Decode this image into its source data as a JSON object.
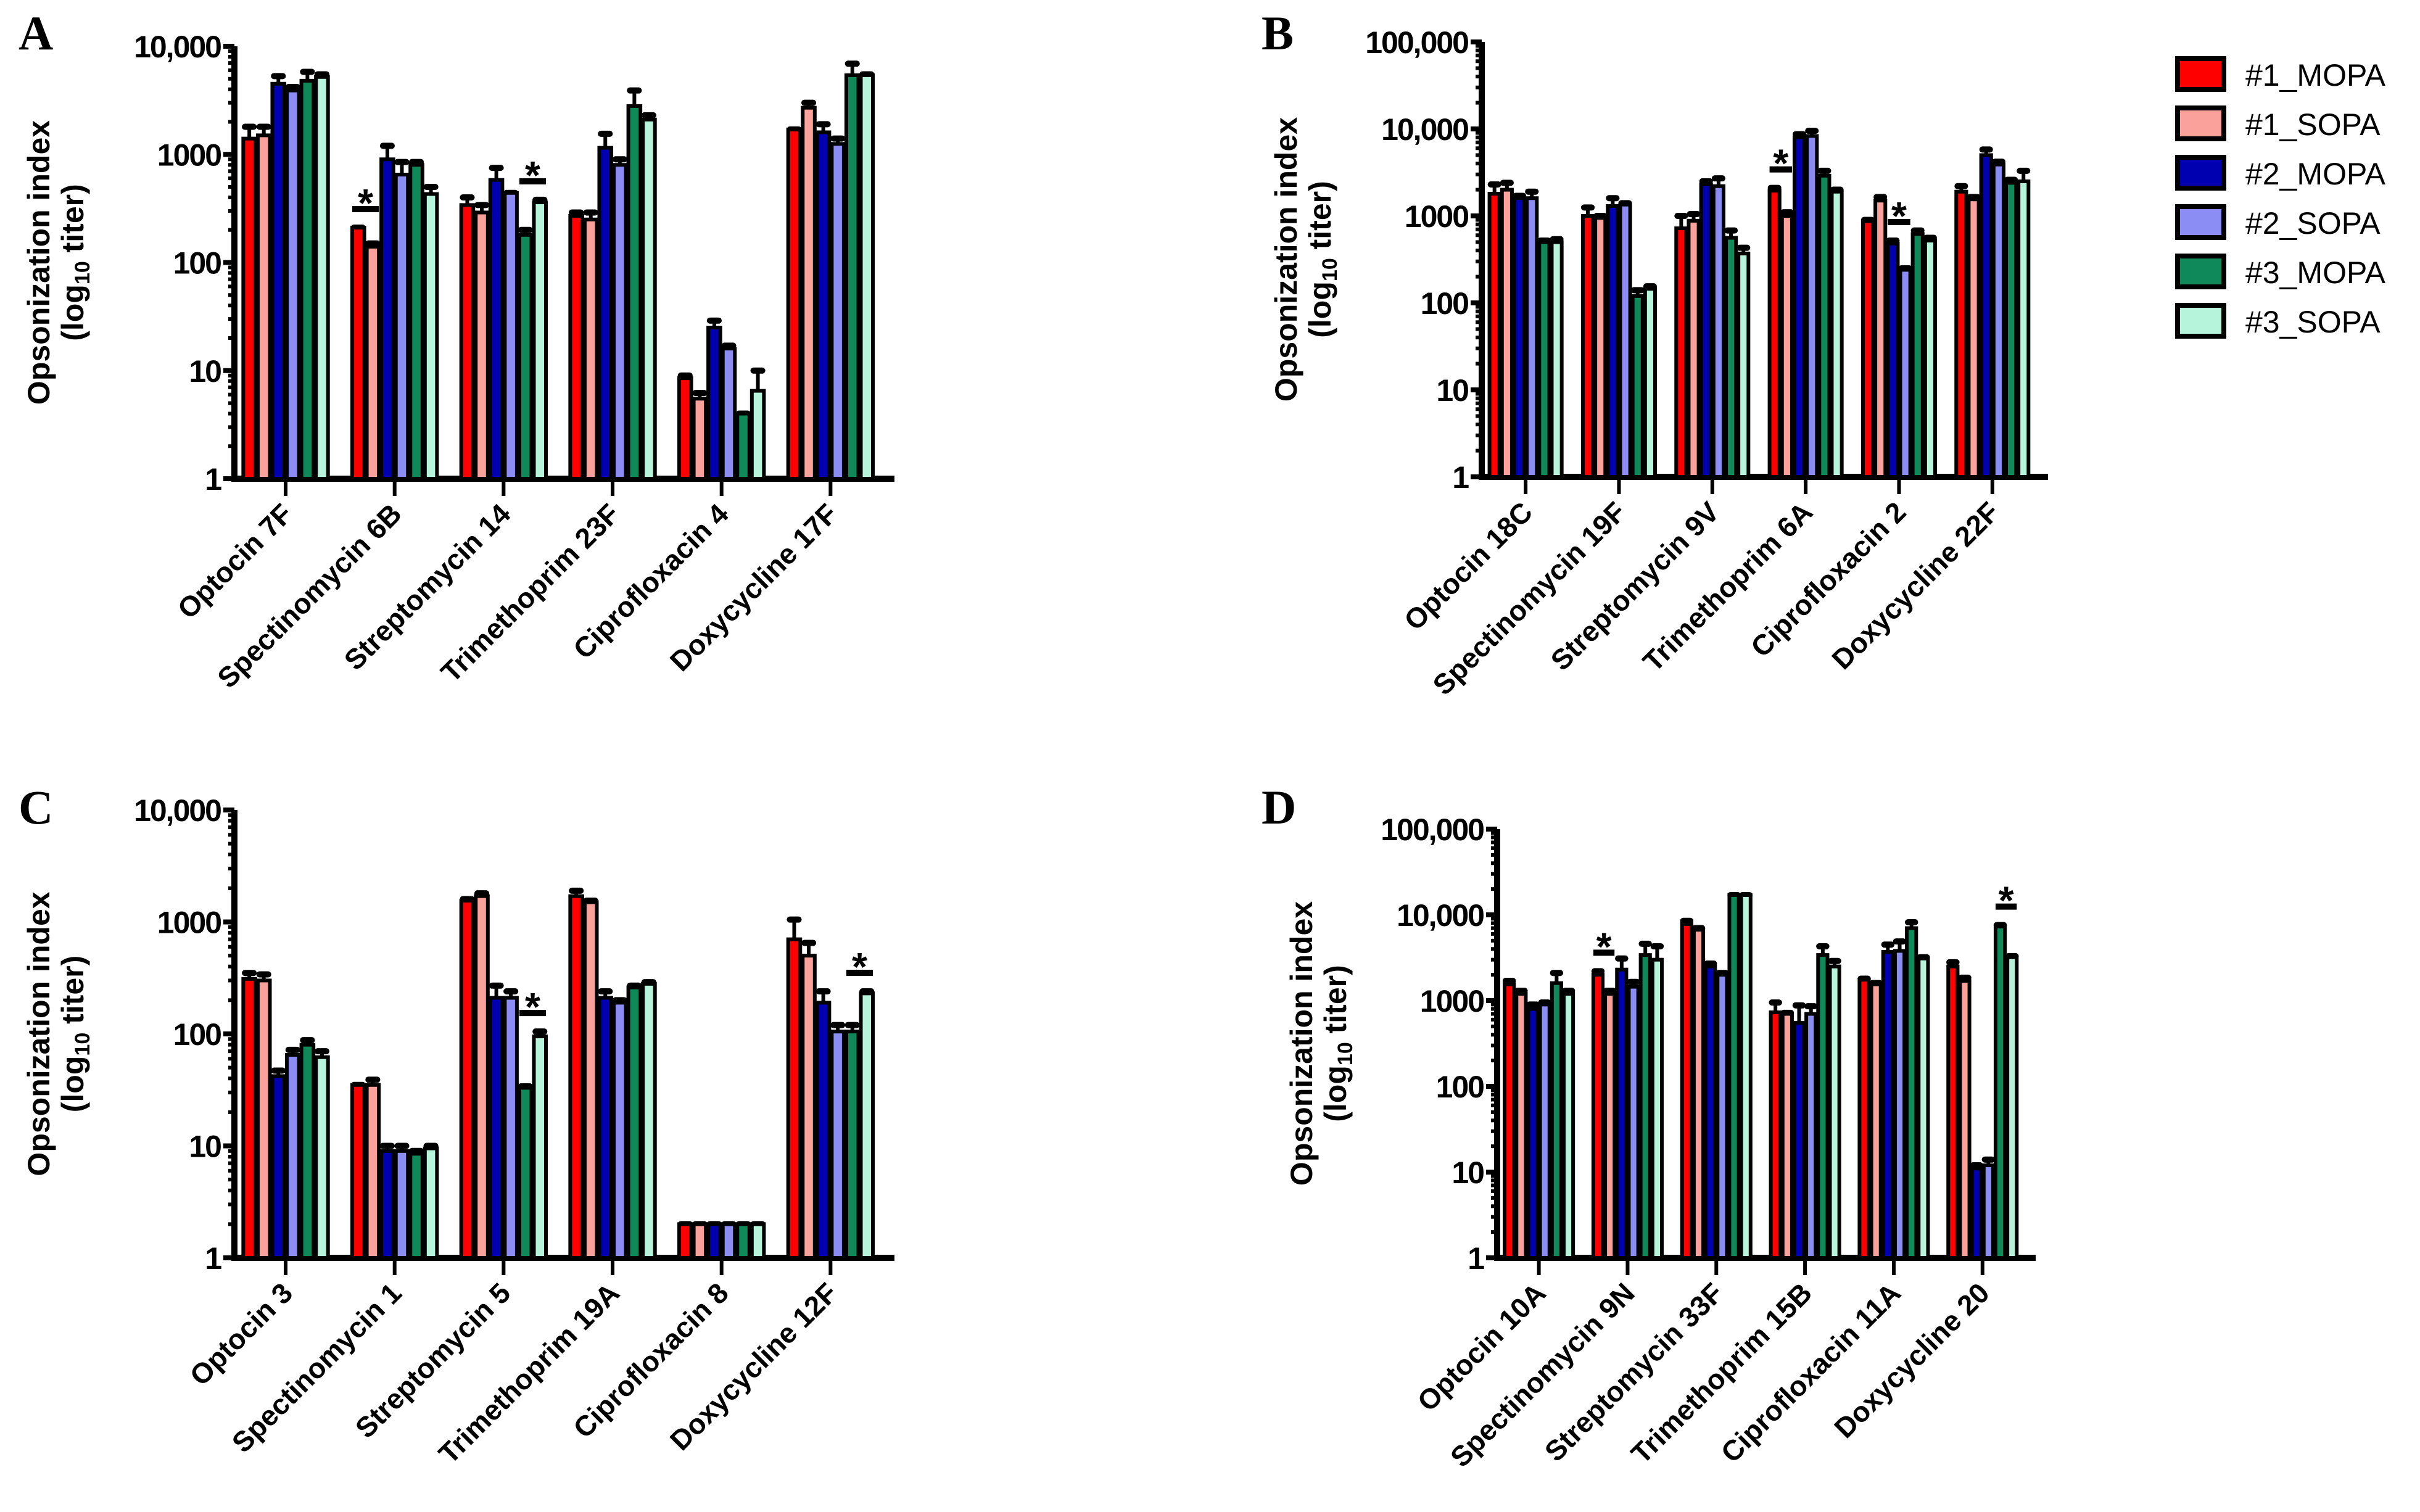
{
  "legend": {
    "placement": "right",
    "items": [
      {
        "name": "#1_MOPA",
        "color": "#ff0000"
      },
      {
        "name": "#1_SOPA",
        "color": "#f9a19a"
      },
      {
        "name": "#2_MOPA",
        "color": "#0000b0"
      },
      {
        "name": "#2_SOPA",
        "color": "#8c8cf5"
      },
      {
        "name": "#3_MOPA",
        "color": "#10895a"
      },
      {
        "name": "#3_SOPA",
        "color": "#b6f5dc"
      }
    ]
  },
  "ylabel": {
    "line1": "Opsonization index",
    "line2_prefix": "(log",
    "line2_sub": "10",
    "line2_suffix": " titer)"
  },
  "chart_data": [
    {
      "panel": "A",
      "type": "bar",
      "yscale": "log",
      "ylim": [
        1,
        10000
      ],
      "yticks": [
        "1",
        "10",
        "100",
        "1000",
        "10,000"
      ],
      "categories": [
        "Optocin 7F",
        "Spectinomycin 6B",
        "Streptomycin 14",
        "Trimethoprim 23F",
        "Ciprofloxacin 4",
        "Doxycycline 17F"
      ],
      "values": [
        [
          1400,
          1500,
          4500,
          3900,
          4800,
          5200
        ],
        [
          210,
          140,
          900,
          650,
          800,
          430
        ],
        [
          340,
          290,
          580,
          440,
          180,
          360
        ],
        [
          270,
          250,
          1150,
          800,
          2800,
          2100
        ],
        [
          8.5,
          5.5,
          25,
          16,
          4,
          6.5
        ],
        [
          1700,
          2700,
          1600,
          1250,
          5400,
          5400
        ]
      ],
      "error_upper": [
        [
          1800,
          1800,
          5300,
          4200,
          5800,
          5500
        ],
        [
          210,
          150,
          1200,
          850,
          850,
          500
        ],
        [
          400,
          340,
          750,
          440,
          200,
          380
        ],
        [
          290,
          290,
          1550,
          900,
          3900,
          2300
        ],
        [
          9,
          6.2,
          29,
          17,
          4,
          10
        ],
        [
          1700,
          3000,
          1900,
          1400,
          6900,
          5500
        ]
      ],
      "significance": [
        {
          "category": 1,
          "bars": [
            0,
            1
          ],
          "label": "*"
        },
        {
          "category": 2,
          "bars": [
            4,
            5
          ],
          "label": "*"
        }
      ]
    },
    {
      "panel": "B",
      "type": "bar",
      "yscale": "log",
      "ylim": [
        1,
        100000
      ],
      "yticks": [
        "1",
        "10",
        "100",
        "1000",
        "10,000",
        "100,000"
      ],
      "categories": [
        "Optocin 18C",
        "Spectinomycin 19F",
        "Streptomycin 9V",
        "Trimethoprim 6A",
        "Ciprofloxacin 2",
        "Doxycycline 22F"
      ],
      "values": [
        [
          1800,
          2000,
          1600,
          1600,
          500,
          500
        ],
        [
          1000,
          950,
          1300,
          1350,
          120,
          145
        ],
        [
          720,
          880,
          2300,
          2200,
          560,
          370
        ],
        [
          1950,
          1000,
          8000,
          8300,
          2900,
          1900
        ],
        [
          870,
          1500,
          480,
          240,
          620,
          520
        ],
        [
          1900,
          1550,
          5000,
          3900,
          2400,
          2500
        ]
      ],
      "error_upper": [
        [
          2300,
          2400,
          1700,
          1900,
          520,
          540
        ],
        [
          1250,
          1000,
          1600,
          1400,
          140,
          155
        ],
        [
          1000,
          1050,
          2500,
          2700,
          680,
          430
        ],
        [
          2100,
          1100,
          8700,
          9500,
          3300,
          2000
        ],
        [
          900,
          1650,
          520,
          250,
          680,
          560
        ],
        [
          2200,
          1650,
          5800,
          4200,
          2600,
          3300
        ]
      ],
      "significance": [
        {
          "category": 3,
          "bars": [
            0,
            1
          ],
          "label": "*"
        },
        {
          "category": 4,
          "bars": [
            2,
            3
          ],
          "label": "*"
        }
      ]
    },
    {
      "panel": "C",
      "type": "bar",
      "yscale": "log",
      "ylim": [
        1,
        10000
      ],
      "yticks": [
        "1",
        "10",
        "100",
        "1000",
        "10,000"
      ],
      "categories": [
        "Optocin 3",
        "Spectinomycin 1",
        "Streptomycin 5",
        "Trimethoprim 19A",
        "Ciprofloxacin 8",
        "Doxycycline 12F"
      ],
      "values": [
        [
          310,
          300,
          42,
          65,
          80,
          62
        ],
        [
          35,
          35,
          9,
          9,
          8.5,
          9.5
        ],
        [
          1550,
          1700,
          210,
          210,
          33,
          95
        ],
        [
          1700,
          1500,
          210,
          190,
          260,
          280
        ],
        [
          2,
          2,
          2,
          2,
          2,
          2
        ],
        [
          700,
          500,
          190,
          105,
          105,
          230
        ]
      ],
      "error_upper": [
        [
          350,
          340,
          47,
          72,
          88,
          70
        ],
        [
          35,
          39,
          10,
          10,
          9,
          10
        ],
        [
          1600,
          1800,
          270,
          240,
          34,
          105
        ],
        [
          1900,
          1550,
          240,
          200,
          270,
          290
        ],
        [
          2,
          2,
          2,
          2,
          2,
          2
        ],
        [
          1050,
          650,
          240,
          120,
          120,
          240
        ]
      ],
      "significance": [
        {
          "category": 2,
          "bars": [
            4,
            5
          ],
          "label": "*"
        },
        {
          "category": 5,
          "bars": [
            4,
            5
          ],
          "label": "*"
        }
      ]
    },
    {
      "panel": "D",
      "type": "bar",
      "yscale": "log",
      "ylim": [
        1,
        100000
      ],
      "yticks": [
        "1",
        "10",
        "100",
        "1000",
        "10,000",
        "100,000"
      ],
      "categories": [
        "Optocin 10A",
        "Spectinomycin 9N",
        "Streptomycin 33F",
        "Trimethoprim 15B",
        "Ciprofloxacin 11A",
        "Doxycycline 20"
      ],
      "values": [
        [
          1550,
          1200,
          800,
          900,
          1600,
          1200
        ],
        [
          2000,
          1200,
          2300,
          1450,
          3400,
          3000
        ],
        [
          7800,
          6700,
          2500,
          2000,
          17000,
          17000
        ],
        [
          730,
          700,
          550,
          700,
          3400,
          2500
        ],
        [
          1750,
          1550,
          3700,
          3800,
          7000,
          3100
        ],
        [
          2500,
          1700,
          11,
          12,
          7300,
          3200
        ]
      ],
      "error_upper": [
        [
          1700,
          1300,
          900,
          950,
          2100,
          1300
        ],
        [
          2200,
          1300,
          3100,
          1650,
          4600,
          4300
        ],
        [
          8500,
          7000,
          2700,
          2100,
          17000,
          17000
        ],
        [
          950,
          720,
          880,
          860,
          4300,
          2900
        ],
        [
          1800,
          1600,
          4500,
          4900,
          8200,
          3200
        ],
        [
          2800,
          1850,
          12,
          14,
          7600,
          3300
        ]
      ],
      "significance": [
        {
          "category": 1,
          "bars": [
            0,
            1
          ],
          "label": "*"
        },
        {
          "category": 5,
          "bars": [
            4,
            5
          ],
          "label": "*"
        }
      ]
    }
  ]
}
